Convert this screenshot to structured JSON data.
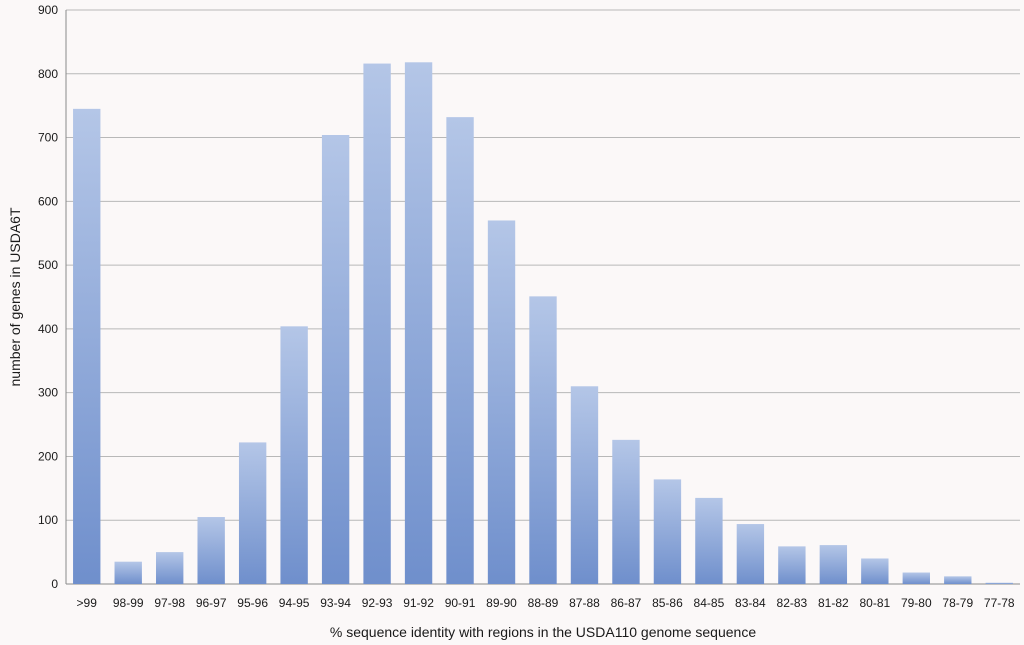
{
  "chart_data": {
    "type": "bar",
    "categories": [
      ">99",
      "98-99",
      "97-98",
      "96-97",
      "95-96",
      "94-95",
      "93-94",
      "92-93",
      "91-92",
      "90-91",
      "89-90",
      "88-89",
      "87-88",
      "86-87",
      "85-86",
      "84-85",
      "83-84",
      "82-83",
      "81-82",
      "80-81",
      "79-80",
      "78-79",
      "77-78"
    ],
    "values": [
      745,
      35,
      50,
      105,
      222,
      404,
      704,
      816,
      818,
      732,
      570,
      451,
      310,
      226,
      164,
      135,
      94,
      59,
      61,
      40,
      18,
      12,
      2
    ],
    "xlabel": "% sequence identity with regions in the USDA110 genome sequence",
    "ylabel": "number of genes in USDA6T",
    "ylim": [
      0,
      900
    ],
    "yticks": [
      0,
      100,
      200,
      300,
      400,
      500,
      600,
      700,
      800,
      900
    ],
    "grid": true,
    "legend": "none",
    "colors": {
      "bar_top": "#b4c6e7",
      "bar_bottom": "#6f8fcc",
      "background": "#fbf8f8",
      "grid": "#b8b8b8"
    }
  }
}
